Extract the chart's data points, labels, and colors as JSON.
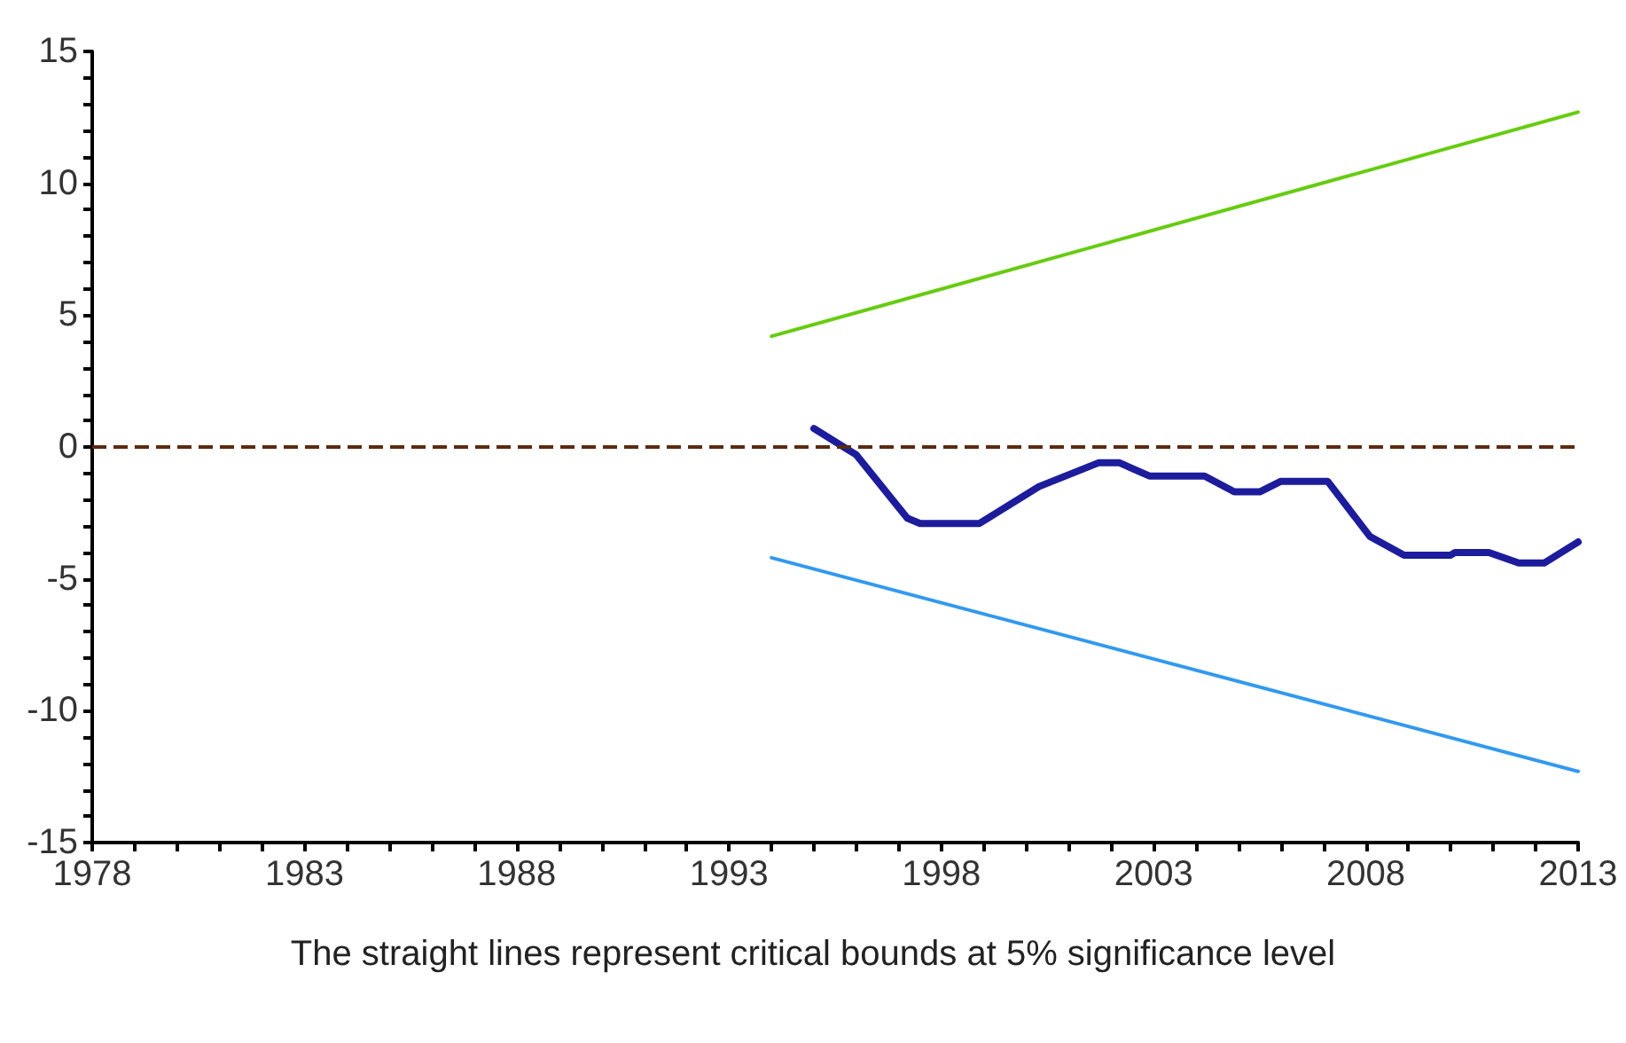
{
  "chart_data": {
    "type": "line",
    "annotations": [
      "The straight lines represent critical bounds at 5% significance level"
    ],
    "series": [
      {
        "color": "#1c1c9c",
        "x": [
          1995,
          1996,
          1997.2,
          1997.5,
          1998.9,
          2000.3,
          2001.7,
          2002.2,
          2002.9,
          2004.2,
          2004.9,
          2005.5,
          2006,
          2007.1,
          2008.1,
          2008.9,
          2010,
          2010.1,
          2010.9,
          2011.6,
          2012.2,
          2013
        ],
        "values": [
          0.7,
          -0.3,
          -2.7,
          -2.9,
          -2.9,
          -1.5,
          -0.6,
          -0.6,
          -1.1,
          -1.1,
          -1.7,
          -1.7,
          -1.3,
          -1.3,
          -3.4,
          -4.1,
          -4.1,
          -4.0,
          -4.0,
          -4.4,
          -4.4,
          -3.6
        ]
      },
      {
        "color": "#66cc11",
        "x": [
          1994,
          2013
        ],
        "values": [
          4.2,
          12.7
        ]
      },
      {
        "color": "#3399ee",
        "x": [
          1994,
          2013
        ],
        "values": [
          -4.2,
          -12.3
        ]
      }
    ],
    "xlim": [
      1978,
      2013
    ],
    "xticks": [
      1978,
      {
        "value": 1979,
        "label": null
      },
      {
        "value": 1980,
        "label": null
      },
      {
        "value": 1981,
        "label": null
      },
      {
        "value": 1982,
        "label": null
      },
      1983,
      {
        "value": 1984,
        "label": null
      },
      {
        "value": 1985,
        "label": null
      },
      {
        "value": 1986,
        "label": null
      },
      {
        "value": 1987,
        "label": null
      },
      1988,
      {
        "value": 1989,
        "label": null
      },
      {
        "value": 1990,
        "label": null
      },
      {
        "value": 1991,
        "label": null
      },
      {
        "value": 1992,
        "label": null
      },
      1993,
      {
        "value": 1994,
        "label": null
      },
      {
        "value": 1995,
        "label": null
      },
      {
        "value": 1996,
        "label": null
      },
      {
        "value": 1997,
        "label": null
      },
      1998,
      {
        "value": 1999,
        "label": null
      },
      {
        "value": 2000,
        "label": null
      },
      {
        "value": 2001,
        "label": null
      },
      {
        "value": 2002,
        "label": null
      },
      2003,
      {
        "value": 2004,
        "label": null
      },
      {
        "value": 2005,
        "label": null
      },
      {
        "value": 2006,
        "label": null
      },
      {
        "value": 2007,
        "label": null
      },
      2008,
      {
        "value": 2009,
        "label": null
      },
      {
        "value": 2010,
        "label": null
      },
      {
        "value": 2011,
        "label": null
      },
      {
        "value": 2012,
        "label": null
      },
      2013
    ],
    "ylim": [
      -15,
      15
    ],
    "yticks": [
      -15,
      {
        "value": -14,
        "label": null
      },
      {
        "value": -13,
        "label": null
      },
      {
        "value": -12,
        "label": null
      },
      {
        "value": -11,
        "label": null
      },
      -10,
      {
        "value": -9,
        "label": null
      },
      {
        "value": -8,
        "label": null
      },
      {
        "value": -7,
        "label": null
      },
      {
        "value": -6,
        "label": null
      },
      -5,
      {
        "value": -4,
        "label": null
      },
      {
        "value": -3,
        "label": null
      },
      {
        "value": -2,
        "label": null
      },
      {
        "value": -1,
        "label": null
      },
      0,
      {
        "value": 1,
        "label": null
      },
      {
        "value": 2,
        "label": null
      },
      {
        "value": 3,
        "label": null
      },
      {
        "value": 4,
        "label": null
      },
      5,
      {
        "value": 6,
        "label": null
      },
      {
        "value": 7,
        "label": null
      },
      {
        "value": 8,
        "label": null
      },
      {
        "value": 9,
        "label": null
      },
      10,
      {
        "value": 11,
        "label": null
      },
      {
        "value": 12,
        "label": null
      },
      {
        "value": 13,
        "label": null
      },
      {
        "value": 14,
        "label": null
      },
      15
    ],
    "ref_lines": [
      {
        "axis": "y",
        "value": 0,
        "color": "#5a2a10",
        "line_style": "dashed"
      }
    ],
    "marker": "none",
    "line_style": "solid"
  }
}
